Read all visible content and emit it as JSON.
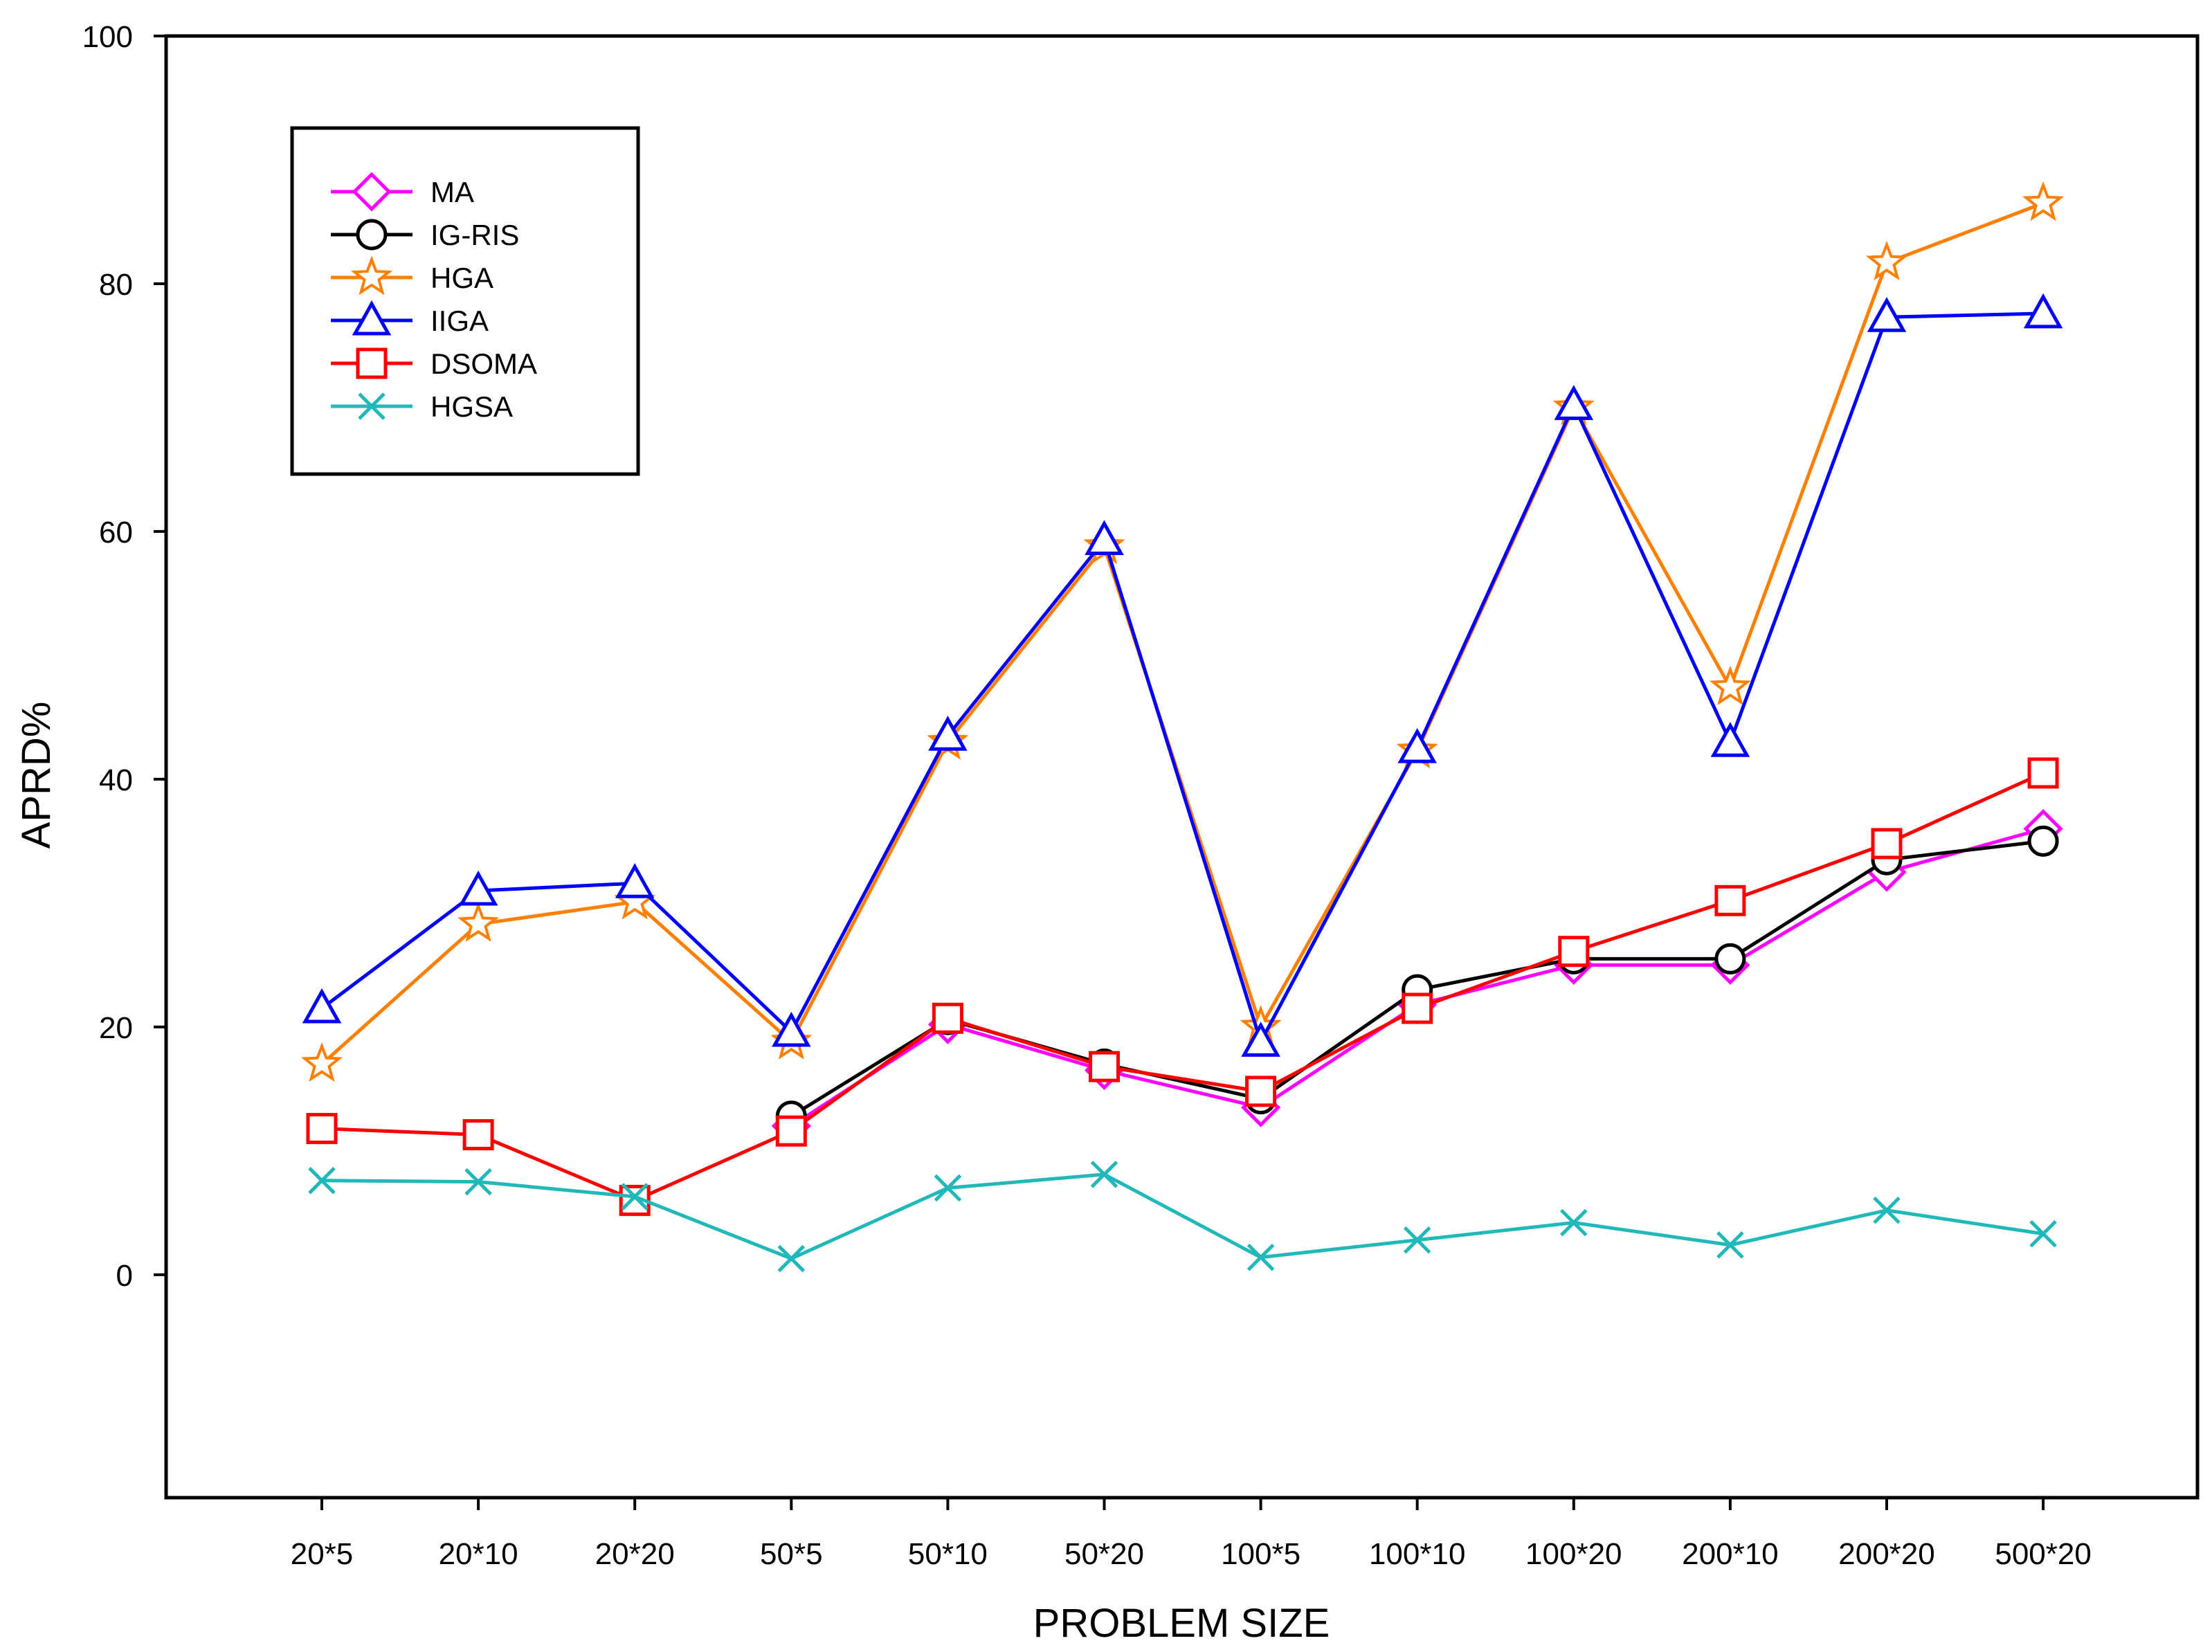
{
  "chart_data": {
    "type": "line",
    "title": "",
    "xlabel": "PROBLEM SIZE",
    "ylabel": "APRD%",
    "ylim": [
      -18,
      100
    ],
    "yticks": [
      0,
      20,
      40,
      60,
      80,
      100
    ],
    "grid": false,
    "legend_position": "top-left",
    "categories": [
      "20*5",
      "20*10",
      "20*20",
      "50*5",
      "50*10",
      "50*20",
      "100*5",
      "100*10",
      "100*20",
      "200*10",
      "200*20",
      "500*20"
    ],
    "series": [
      {
        "name": "MA",
        "color": "#ff00ff",
        "marker": "diamond",
        "values": [
          null,
          null,
          null,
          12.0,
          20.2,
          16.5,
          13.5,
          21.8,
          25.0,
          25.0,
          32.5,
          36.0
        ]
      },
      {
        "name": "IG-RIS",
        "color": "#000000",
        "marker": "circle",
        "values": [
          null,
          null,
          null,
          12.8,
          20.6,
          17.0,
          14.2,
          23.0,
          25.5,
          25.5,
          33.5,
          35.0
        ]
      },
      {
        "name": "HGA",
        "color": "#ff8000",
        "marker": "star",
        "values": [
          17.0,
          28.3,
          30.1,
          18.8,
          43.0,
          58.8,
          20.0,
          42.3,
          70.0,
          47.4,
          81.7,
          86.5
        ]
      },
      {
        "name": "IIGA",
        "color": "#0000ff",
        "marker": "triangle",
        "values": [
          21.5,
          31.0,
          31.6,
          19.6,
          43.5,
          59.3,
          18.8,
          42.5,
          70.2,
          43.0,
          77.3,
          77.6
        ]
      },
      {
        "name": "DSOMA",
        "color": "#ff0000",
        "marker": "square",
        "values": [
          11.8,
          11.3,
          6.0,
          11.6,
          20.7,
          16.8,
          14.8,
          21.5,
          26.1,
          30.2,
          34.8,
          40.5
        ]
      },
      {
        "name": "HGSA",
        "color": "#20b8b8",
        "marker": "x",
        "values": [
          7.6,
          7.5,
          6.3,
          1.3,
          7.0,
          8.1,
          1.4,
          2.8,
          4.2,
          2.4,
          5.2,
          3.3
        ]
      }
    ]
  }
}
